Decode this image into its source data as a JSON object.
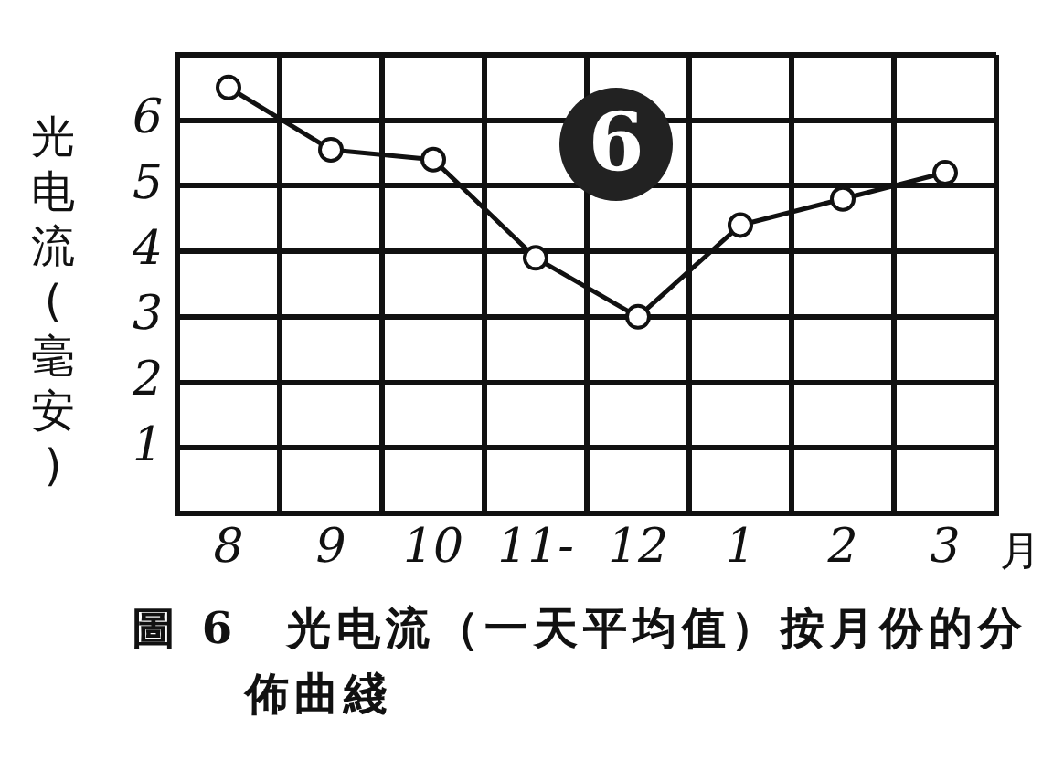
{
  "chart_data": {
    "type": "line",
    "title": "圖 6　光电流（一天平均值）按月份的分佈曲綫",
    "xlabel": "月",
    "ylabel": "光电流(毫安)",
    "categories": [
      "8",
      "9",
      "10",
      "11-",
      "12",
      "1",
      "2",
      "3"
    ],
    "series": [
      {
        "color": "#111111",
        "values": [
          6.5,
          5.55,
          5.4,
          3.9,
          3.0,
          4.4,
          4.8,
          5.2
        ]
      }
    ],
    "ylim": [
      0,
      7
    ],
    "yticks": [
      {
        "value": 0,
        "label": null
      },
      1,
      2,
      3,
      4,
      5,
      6,
      {
        "value": 7,
        "label": null
      }
    ],
    "grid": true,
    "marker": "circle",
    "annotations": [
      "6"
    ]
  }
}
